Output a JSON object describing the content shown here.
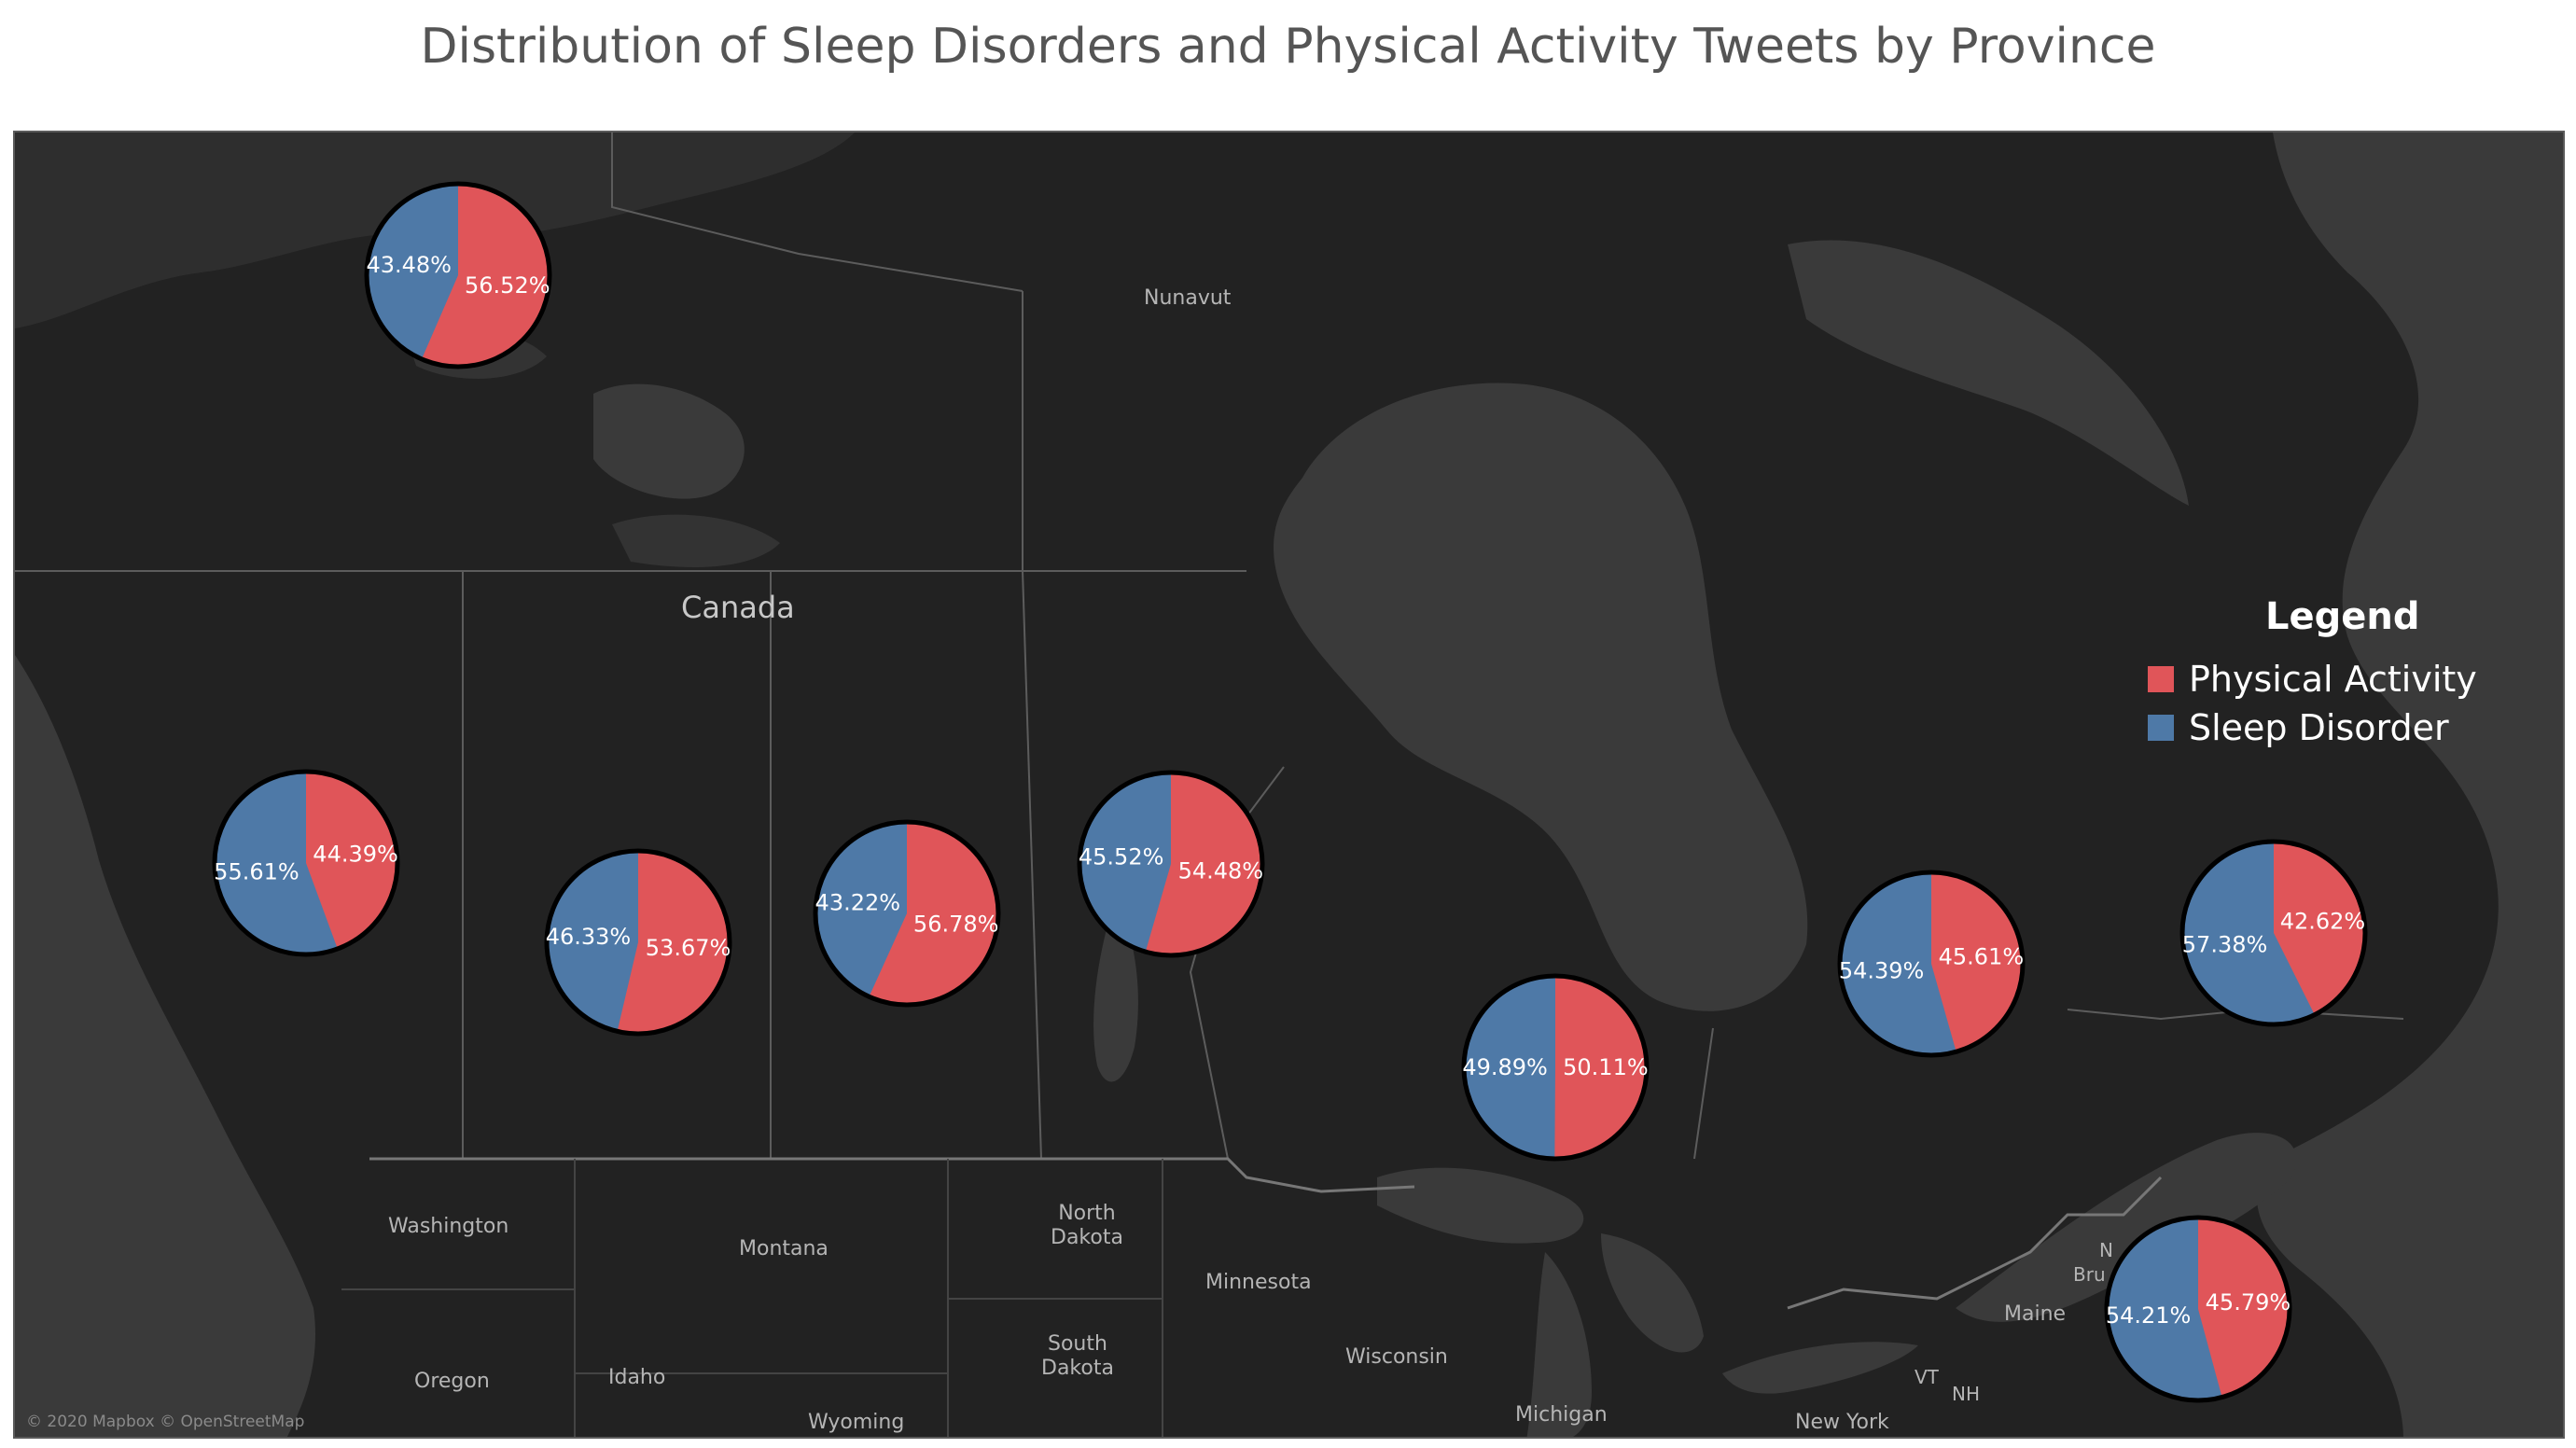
{
  "title": "Distribution of Sleep Disorders and Physical Activity Tweets by Province",
  "attribution": "© 2020 Mapbox © OpenStreetMap",
  "legend": {
    "title": "Legend",
    "items": [
      {
        "label": "Physical Activity",
        "color": "#e05559"
      },
      {
        "label": "Sleep Disorder",
        "color": "#4e79a7"
      }
    ]
  },
  "map_labels": {
    "canada": "Canada",
    "nunavut": "Nunavut",
    "washington": "Washington",
    "montana": "Montana",
    "north_dakota_1": "North",
    "north_dakota_2": "Dakota",
    "minnesota": "Minnesota",
    "south_dakota_1": "South",
    "south_dakota_2": "Dakota",
    "wisconsin": "Wisconsin",
    "oregon": "Oregon",
    "idaho": "Idaho",
    "wyoming": "Wyoming",
    "michigan": "Michigan",
    "new_york": "New York",
    "maine": "Maine",
    "vt": "VT",
    "nh": "NH",
    "n": "N",
    "bru": "Bru"
  },
  "pies": [
    {
      "physical_activity": "56.52%",
      "sleep_disorder": "43.48%"
    },
    {
      "physical_activity": "44.39%",
      "sleep_disorder": "55.61%"
    },
    {
      "physical_activity": "53.67%",
      "sleep_disorder": "46.33%"
    },
    {
      "physical_activity": "56.78%",
      "sleep_disorder": "43.22%"
    },
    {
      "physical_activity": "54.48%",
      "sleep_disorder": "45.52%"
    },
    {
      "physical_activity": "50.11%",
      "sleep_disorder": "49.89%"
    },
    {
      "physical_activity": "45.61%",
      "sleep_disorder": "54.39%"
    },
    {
      "physical_activity": "42.62%",
      "sleep_disorder": "57.38%"
    },
    {
      "physical_activity": "45.79%",
      "sleep_disorder": "54.21%"
    }
  ]
}
